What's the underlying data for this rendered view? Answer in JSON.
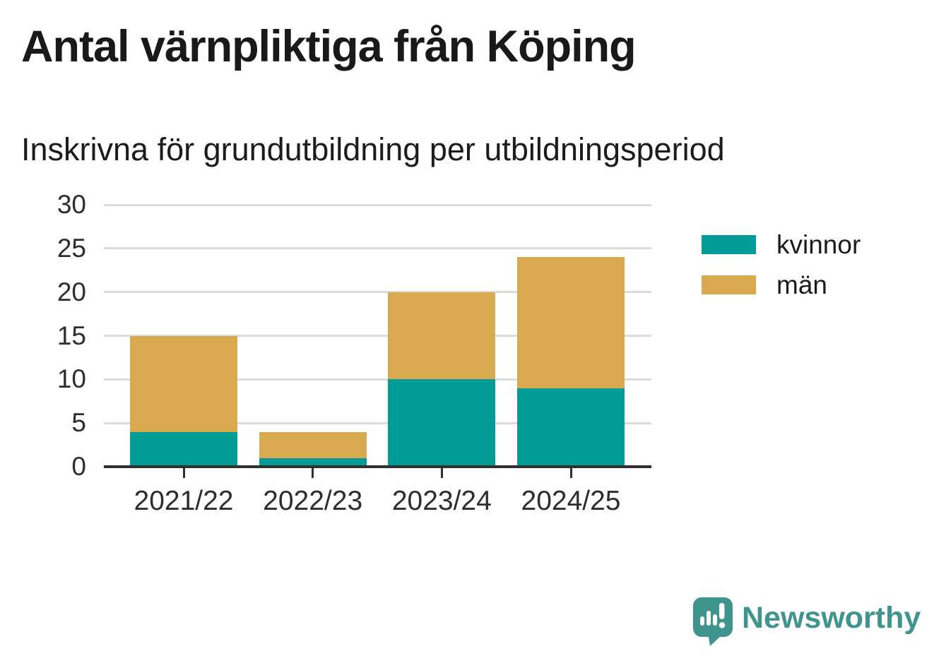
{
  "title": "Antal värnpliktiga från Köping",
  "subtitle": "Inskrivna för grundutbildning per utbildningsperiod",
  "chart_data": {
    "type": "bar",
    "stacked": true,
    "title": "Antal värnpliktiga från Köping",
    "subtitle": "Inskrivna för grundutbildning per utbildningsperiod",
    "categories": [
      "2021/22",
      "2022/23",
      "2023/24",
      "2024/25"
    ],
    "series": [
      {
        "name": "kvinnor",
        "color": "#009C95",
        "values": [
          4,
          1,
          10,
          9
        ]
      },
      {
        "name": "män",
        "color": "#D9A950",
        "values": [
          11,
          3,
          10,
          15
        ]
      }
    ],
    "stack_totals": [
      15,
      4,
      20,
      24
    ],
    "xlabel": "",
    "ylabel": "",
    "ylim": [
      0,
      30
    ],
    "yticks": [
      0,
      5,
      10,
      15,
      20,
      25,
      30
    ],
    "grid": "horizontal",
    "legend_position": "right"
  },
  "colors": {
    "grid": "#dbdbdb",
    "axis": "#303030",
    "tick_label": "#2d2d2d",
    "text": "#191919"
  },
  "branding": {
    "logo_text": "Newsworthy",
    "logo_color": "#3F948D",
    "logo_icon": "bar-chart-speech-bubble"
  }
}
